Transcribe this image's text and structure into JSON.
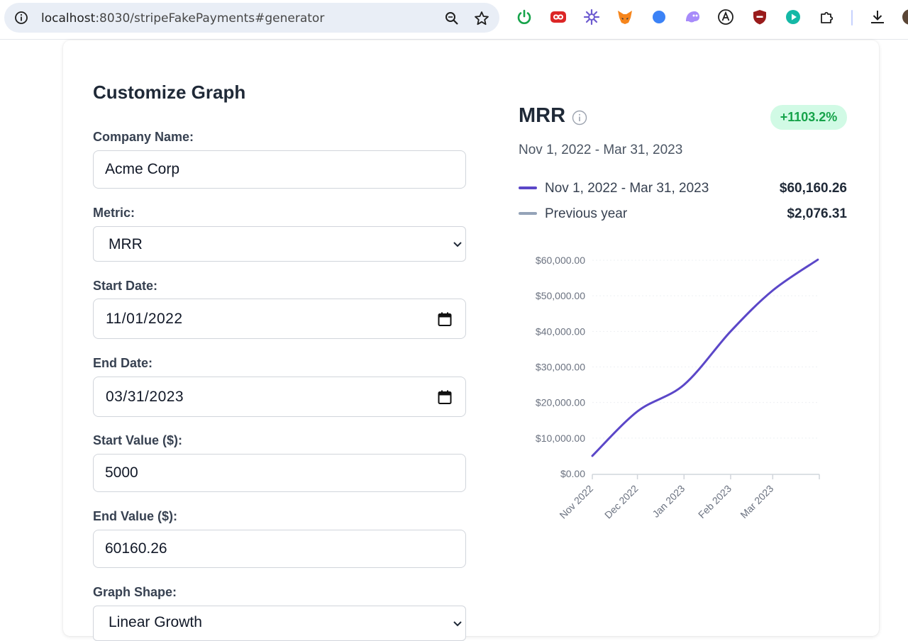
{
  "browser": {
    "url_host": "localhost",
    "url_rest": ":8030/stripeFakePayments#generator",
    "extensions": [
      "power-icon",
      "infinity-icon",
      "asterisk-icon",
      "fox-icon",
      "blue-dot-icon",
      "ghost-icon",
      "a-circle-icon",
      "shield-icon",
      "play-icon",
      "puzzle-icon"
    ]
  },
  "form": {
    "title": "Customize Graph",
    "company_label": "Company Name:",
    "company_value": "Acme Corp",
    "metric_label": "Metric:",
    "metric_value": "MRR",
    "start_date_label": "Start Date:",
    "start_date_value": "11/01/2022",
    "end_date_label": "End Date:",
    "end_date_value": "03/31/2023",
    "start_value_label": "Start Value ($):",
    "start_value_value": "5000",
    "end_value_label": "End Value ($):",
    "end_value_value": "60160.26",
    "shape_label": "Graph Shape:",
    "shape_value": "Linear Growth"
  },
  "panel": {
    "metric": "MRR",
    "change_badge": "+1103.2%",
    "date_range": "Nov 1, 2022 - Mar 31, 2023",
    "legend": [
      {
        "label": "Nov 1, 2022 - Mar 31, 2023",
        "value": "$60,160.26",
        "color": "#5b47c8"
      },
      {
        "label": "Previous year",
        "value": "$2,076.31",
        "color": "#94a3b8"
      }
    ]
  },
  "chart_data": {
    "type": "line",
    "x": [
      "2022-11-01",
      "2022-12-01",
      "2023-01-01",
      "2023-02-01",
      "2023-03-01",
      "2023-03-31"
    ],
    "x_tick_labels": [
      "Nov 2022",
      "Dec 2022",
      "Jan 2023",
      "Feb 2023",
      "Mar 2023"
    ],
    "y_tick_labels": [
      "$0.00",
      "$10,000.00",
      "$20,000.00",
      "$30,000.00",
      "$40,000.00",
      "$50,000.00",
      "$60,000.00"
    ],
    "ylim": [
      0,
      60000
    ],
    "series": [
      {
        "values": [
          5000,
          17500,
          25000,
          40000,
          51500,
          60160.26
        ],
        "color": "#5b47c8"
      }
    ],
    "grid": true
  }
}
